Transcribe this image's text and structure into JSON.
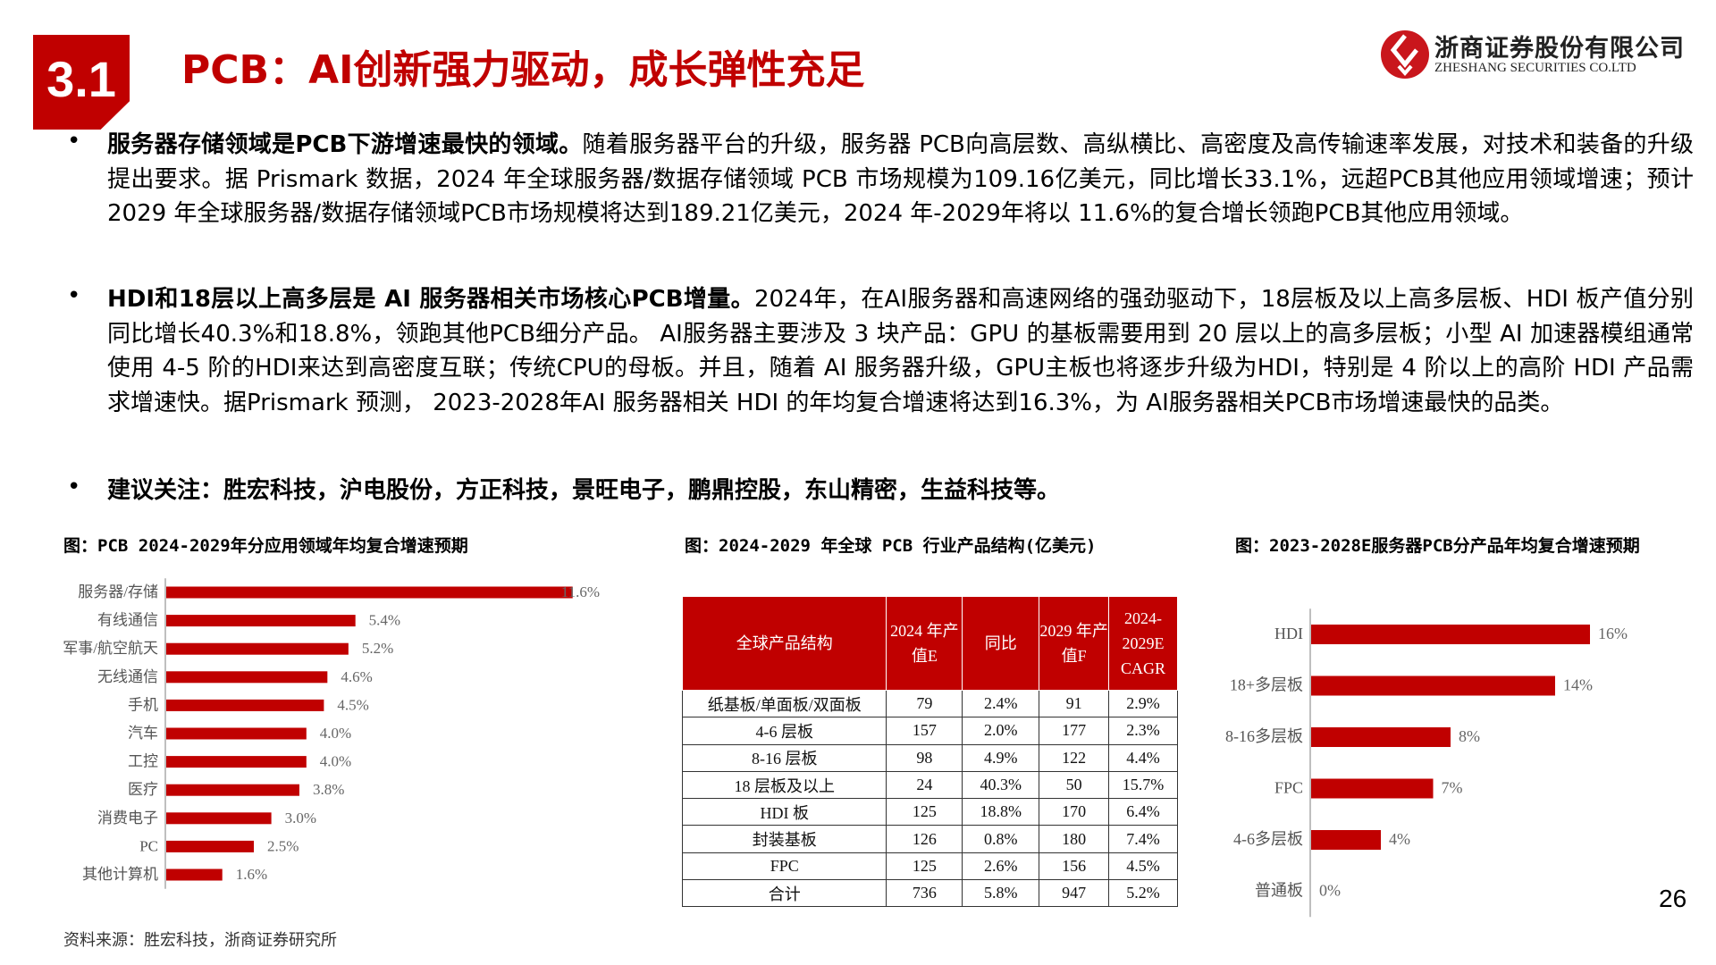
{
  "header": {
    "section": "3.1",
    "title": "PCB：AI创新强力驱动，成长弹性充足",
    "logo_cn": "浙商证券股份有限公司",
    "logo_en": "ZHESHANG SECURITIES CO.LTD",
    "brand_color": "#c00000"
  },
  "bullets": [
    {
      "bold": "服务器存储领域是PCB下游增速最快的领域。",
      "text": "随着服务器平台的升级，服务器 PCB向高层数、高纵横比、高密度及高传输速率发展，对技术和装备的升级提出要求。据 Prismark 数据，2024 年全球服务器/数据存储领域 PCB 市场规模为109.16亿美元，同比增长33.1%，远超PCB其他应用领域增速；预计 2029 年全球服务器/数据存储领域PCB市场规模将达到189.21亿美元，2024 年-2029年将以 11.6%的复合增长领跑PCB其他应用领域。"
    },
    {
      "bold": "HDI和18层以上高多层是 AI 服务器相关市场核心PCB增量。",
      "text": "2024年，在AI服务器和高速网络的强劲驱动下，18层板及以上高多层板、HDI 板产值分别同比增长40.3%和18.8%，领跑其他PCB细分产品。 AI服务器主要涉及 3 块产品：GPU 的基板需要用到 20 层以上的高多层板；小型 AI 加速器模组通常使用 4-5 阶的HDI来达到高密度互联；传统CPU的母板。并且，随着 AI 服务器升级，GPU主板也将逐步升级为HDI，特别是 4 阶以上的高阶 HDI 产品需求增速快。据Prismark 预测， 2023-2028年AI 服务器相关 HDI 的年均复合增速将达到16.3%，为 AI服务器相关PCB市场增速最快的品类。"
    },
    {
      "bold": "建议关注：胜宏科技，沪电股份，方正科技，景旺电子，鹏鼎控股，东山精密，生益科技等。",
      "text": ""
    }
  ],
  "chart_data": [
    {
      "type": "bar",
      "orientation": "horizontal",
      "title": "图：PCB 2024-2029年分应用领域年均复合增速预期",
      "categories": [
        "服务器/存储",
        "有线通信",
        "军事/航空航天",
        "无线通信",
        "手机",
        "汽车",
        "工控",
        "医疗",
        "消费电子",
        "PC",
        "其他计算机"
      ],
      "values": [
        11.6,
        5.4,
        5.2,
        4.6,
        4.5,
        4.0,
        4.0,
        3.8,
        3.0,
        2.5,
        1.6
      ],
      "labels": [
        "11.6%",
        "5.4%",
        "5.2%",
        "4.6%",
        "4.5%",
        "4.0%",
        "4.0%",
        "3.8%",
        "3.0%",
        "2.5%",
        "1.6%"
      ],
      "unit": "%",
      "color": "#c00000"
    },
    {
      "type": "table",
      "title": "图：2024-2029 年全球 PCB 行业产品结构(亿美元)",
      "columns": [
        "全球产品结构",
        "2024 年产值E",
        "同比",
        "2029 年产值F",
        "2024-2029E CAGR"
      ],
      "rows": [
        [
          "纸基板/单面板/双面板",
          "79",
          "2.4%",
          "91",
          "2.9%"
        ],
        [
          "4-6 层板",
          "157",
          "2.0%",
          "177",
          "2.3%"
        ],
        [
          "8-16 层板",
          "98",
          "4.9%",
          "122",
          "4.4%"
        ],
        [
          "18 层板及以上",
          "24",
          "40.3%",
          "50",
          "15.7%"
        ],
        [
          "HDI 板",
          "125",
          "18.8%",
          "170",
          "6.4%"
        ],
        [
          "封装基板",
          "126",
          "0.8%",
          "180",
          "7.4%"
        ],
        [
          "FPC",
          "125",
          "2.6%",
          "156",
          "4.5%"
        ],
        [
          "合计",
          "736",
          "5.8%",
          "947",
          "5.2%"
        ]
      ]
    },
    {
      "type": "bar",
      "orientation": "horizontal",
      "title": "图：2023-2028E服务器PCB分产品年均复合增速预期",
      "categories": [
        "HDI",
        "18+多层板",
        "8-16多层板",
        "FPC",
        "4-6多层板",
        "普通板"
      ],
      "values": [
        16,
        14,
        8,
        7,
        4,
        0
      ],
      "labels": [
        "16%",
        "14%",
        "8%",
        "7%",
        "4%",
        "0%"
      ],
      "unit": "%",
      "color": "#c00000"
    }
  ],
  "footer": {
    "source": "资料来源：胜宏科技，浙商证券研究所",
    "page": "26"
  }
}
